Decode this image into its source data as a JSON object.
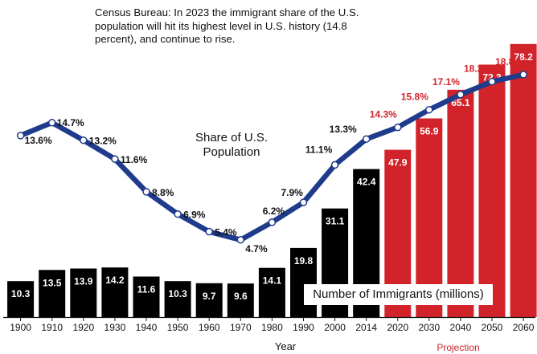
{
  "chart_data": {
    "type": "bar+line",
    "x_title": "Year",
    "categories": [
      "1900",
      "1910",
      "1920",
      "1930",
      "1940",
      "1950",
      "1960",
      "1970",
      "1980",
      "1990",
      "2000",
      "2014",
      "2020",
      "2030",
      "2040",
      "2050",
      "2060"
    ],
    "projection_from_index": 12,
    "projection_label": "Projection",
    "annotation": "Census Bureau: In 2023 the immigrant share of the U.S. population will hit its highest level in U.S. history (14.8 percent), and continue to rise.",
    "series": [
      {
        "name": "Number of Immigrants (millions)",
        "type": "bar",
        "values": [
          10.3,
          13.5,
          13.9,
          14.2,
          11.6,
          10.3,
          9.7,
          9.6,
          14.1,
          19.8,
          31.1,
          42.4,
          47.9,
          56.9,
          65.1,
          72.3,
          78.2
        ],
        "value_labels": [
          "10.3",
          "13.5",
          "13.9",
          "14.2",
          "11.6",
          "10.3",
          "9.7",
          "9.6",
          "14.1",
          "19.8",
          "31.1",
          "42.4",
          "47.9",
          "56.9",
          "65.1",
          "72.3",
          "78.2"
        ]
      },
      {
        "name": "Share of U.S. Population",
        "type": "line",
        "values": [
          13.6,
          14.7,
          13.2,
          11.6,
          8.8,
          6.9,
          5.4,
          4.7,
          6.2,
          7.9,
          11.1,
          13.3,
          14.3,
          15.8,
          17.1,
          18.2,
          18.8
        ],
        "value_labels": [
          "13.6%",
          "14.7%",
          "13.2%",
          "11.6%",
          "8.8%",
          "6.9%",
          "5.4%",
          "4.7%",
          "6.2%",
          "7.9%",
          "11.1%",
          "13.3%",
          "14.3%",
          "15.8%",
          "17.1%",
          "18.2%",
          "18.8%"
        ]
      }
    ],
    "colors": {
      "historical_bar": "#000000",
      "projection_bar": "#d2232a",
      "line": "#1f3b8c",
      "projection_text": "#d2232a",
      "text": "#111111"
    }
  }
}
